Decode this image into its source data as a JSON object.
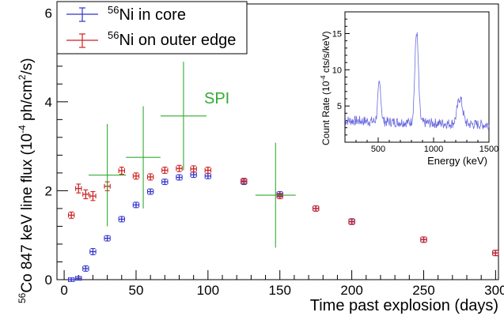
{
  "chart_data": [
    {
      "type": "scatter",
      "xlabel": "Time past explosion (days)",
      "ylabel": {
        "pre": "Co 847 keV line flux (10",
        "exp": "-4",
        "post": " ph/cm",
        "exp2": "2",
        "tail": "/s)",
        "iso": "56"
      },
      "xlim": [
        -5,
        302
      ],
      "ylim": [
        0,
        6.2
      ],
      "x_ticks": [
        "0",
        "50",
        "100",
        "150",
        "200",
        "250",
        "300"
      ],
      "x_tick_values": [
        0,
        50,
        100,
        150,
        200,
        250,
        300
      ],
      "y_ticks": [
        "0",
        "2",
        "4",
        "6"
      ],
      "y_tick_values": [
        0,
        2,
        4,
        6
      ],
      "grid": false,
      "legend_position": "top-left",
      "series": [
        {
          "name": {
            "iso": "56",
            "text": "Ni in core"
          },
          "color": "#3333cc",
          "points": [
            {
              "x": 5,
              "y": 0.0,
              "xerr": 2,
              "yerr": 0.04
            },
            {
              "x": 10,
              "y": 0.03,
              "xerr": 2,
              "yerr": 0.04
            },
            {
              "x": 15,
              "y": 0.25,
              "xerr": 2,
              "yerr": 0.06
            },
            {
              "x": 20,
              "y": 0.63,
              "xerr": 2,
              "yerr": 0.07
            },
            {
              "x": 30,
              "y": 0.93,
              "xerr": 2,
              "yerr": 0.06
            },
            {
              "x": 40,
              "y": 1.36,
              "xerr": 2,
              "yerr": 0.06
            },
            {
              "x": 50,
              "y": 1.68,
              "xerr": 2,
              "yerr": 0.06
            },
            {
              "x": 60,
              "y": 1.98,
              "xerr": 2,
              "yerr": 0.06
            },
            {
              "x": 70,
              "y": 2.2,
              "xerr": 2,
              "yerr": 0.06
            },
            {
              "x": 80,
              "y": 2.3,
              "xerr": 2,
              "yerr": 0.06
            },
            {
              "x": 90,
              "y": 2.36,
              "xerr": 2,
              "yerr": 0.06
            },
            {
              "x": 100,
              "y": 2.33,
              "xerr": 2,
              "yerr": 0.06
            },
            {
              "x": 125,
              "y": 2.2,
              "xerr": 2,
              "yerr": 0.06
            },
            {
              "x": 150,
              "y": 1.92,
              "xerr": 2,
              "yerr": 0.06
            },
            {
              "x": 175,
              "y": 1.6,
              "xerr": 2,
              "yerr": 0.06
            },
            {
              "x": 200,
              "y": 1.31,
              "xerr": 2,
              "yerr": 0.06
            },
            {
              "x": 250,
              "y": 0.9,
              "xerr": 2,
              "yerr": 0.06
            },
            {
              "x": 300,
              "y": 0.6,
              "xerr": 2,
              "yerr": 0.06
            }
          ]
        },
        {
          "name": {
            "iso": "56",
            "text": "Ni on outer edge"
          },
          "color": "#cc2222",
          "points": [
            {
              "x": 5,
              "y": 1.45,
              "xerr": 2,
              "yerr": 0.07
            },
            {
              "x": 10,
              "y": 2.05,
              "xerr": 2,
              "yerr": 0.1
            },
            {
              "x": 15,
              "y": 1.92,
              "xerr": 2,
              "yerr": 0.1
            },
            {
              "x": 20,
              "y": 1.88,
              "xerr": 2,
              "yerr": 0.1
            },
            {
              "x": 30,
              "y": 2.1,
              "xerr": 2,
              "yerr": 0.1
            },
            {
              "x": 40,
              "y": 2.45,
              "xerr": 2,
              "yerr": 0.08
            },
            {
              "x": 50,
              "y": 2.33,
              "xerr": 2,
              "yerr": 0.07
            },
            {
              "x": 60,
              "y": 2.31,
              "xerr": 2,
              "yerr": 0.07
            },
            {
              "x": 70,
              "y": 2.46,
              "xerr": 2,
              "yerr": 0.07
            },
            {
              "x": 80,
              "y": 2.5,
              "xerr": 2,
              "yerr": 0.07
            },
            {
              "x": 90,
              "y": 2.49,
              "xerr": 2,
              "yerr": 0.07
            },
            {
              "x": 100,
              "y": 2.46,
              "xerr": 2,
              "yerr": 0.07
            },
            {
              "x": 125,
              "y": 2.22,
              "xerr": 2,
              "yerr": 0.06
            },
            {
              "x": 150,
              "y": 1.88,
              "xerr": 2,
              "yerr": 0.06
            },
            {
              "x": 175,
              "y": 1.6,
              "xerr": 2,
              "yerr": 0.06
            },
            {
              "x": 200,
              "y": 1.3,
              "xerr": 2,
              "yerr": 0.06
            },
            {
              "x": 250,
              "y": 0.9,
              "xerr": 2,
              "yerr": 0.06
            },
            {
              "x": 300,
              "y": 0.6,
              "xerr": 2,
              "yerr": 0.06
            }
          ]
        },
        {
          "name": "SPI",
          "color": "#33aa33",
          "points": [
            {
              "x": 30,
              "y": 2.35,
              "xerr": 13,
              "yerr": 1.15
            },
            {
              "x": 55,
              "y": 2.75,
              "xerr": 12,
              "yerr": 1.15
            },
            {
              "x": 83,
              "y": 3.68,
              "xerr": 16,
              "yerr": 1.22
            },
            {
              "x": 147,
              "y": 1.9,
              "xerr": 14,
              "yerr": 1.18
            }
          ]
        }
      ]
    },
    {
      "type": "line",
      "xlabel": "Energy (keV)",
      "ylabel": {
        "pre": "Count Rate (10",
        "exp": "-4",
        "post": " cts/s/keV)"
      },
      "xlim": [
        200,
        1500
      ],
      "ylim": [
        0,
        18
      ],
      "x_ticks": [
        "500",
        "1000",
        "1500"
      ],
      "x_tick_values": [
        500,
        1000,
        1500
      ],
      "y_ticks": [
        "5",
        "10",
        "15"
      ],
      "y_tick_values": [
        5,
        10,
        15
      ],
      "color": "#6b6be0",
      "baseline": 3.0,
      "peaks": [
        {
          "center": 511,
          "height": 5.2,
          "width": 14
        },
        {
          "center": 847,
          "height": 12.5,
          "width": 16
        },
        {
          "center": 1238,
          "height": 3.6,
          "width": 24
        }
      ]
    }
  ]
}
